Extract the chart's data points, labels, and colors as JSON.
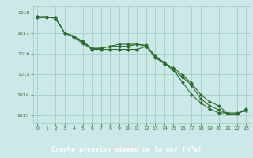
{
  "title": "Graphe pression niveau de la mer (hPa)",
  "background_color": "#cce8e8",
  "plot_bg_color": "#cce8e8",
  "label_bg_color": "#2d6e2d",
  "grid_color": "#99ccbb",
  "line_color": "#2d6e2d",
  "marker_color": "#2d6e2d",
  "ylim": [
    1012.6,
    1018.3
  ],
  "xlim": [
    -0.5,
    23.5
  ],
  "yticks": [
    1013,
    1014,
    1015,
    1016,
    1017,
    1018
  ],
  "xticks": [
    0,
    1,
    2,
    3,
    4,
    5,
    6,
    7,
    8,
    9,
    10,
    11,
    12,
    13,
    14,
    15,
    16,
    17,
    18,
    19,
    20,
    21,
    22,
    23
  ],
  "line1": [
    1017.8,
    1017.8,
    1017.7,
    1017.0,
    1016.8,
    1016.5,
    1016.2,
    1016.2,
    1016.2,
    1016.2,
    1016.2,
    1016.2,
    1016.35,
    1015.8,
    1015.5,
    1015.2,
    1014.6,
    1014.0,
    1013.6,
    1013.3,
    1013.1,
    1013.1,
    1013.1,
    1013.2
  ],
  "line2": [
    1017.8,
    1017.75,
    1017.75,
    1017.0,
    1016.85,
    1016.55,
    1016.25,
    1016.25,
    1016.35,
    1016.35,
    1016.35,
    1016.45,
    1016.4,
    1015.85,
    1015.5,
    1015.2,
    1014.85,
    1014.45,
    1013.8,
    1013.45,
    1013.25,
    1013.05,
    1013.05,
    1013.25
  ],
  "line3": [
    1017.75,
    1017.75,
    1017.75,
    1017.0,
    1016.85,
    1016.6,
    1016.25,
    1016.25,
    1016.35,
    1016.45,
    1016.45,
    1016.45,
    1016.35,
    1015.9,
    1015.55,
    1015.3,
    1014.95,
    1014.55,
    1014.0,
    1013.65,
    1013.45,
    1013.05,
    1013.05,
    1013.3
  ]
}
